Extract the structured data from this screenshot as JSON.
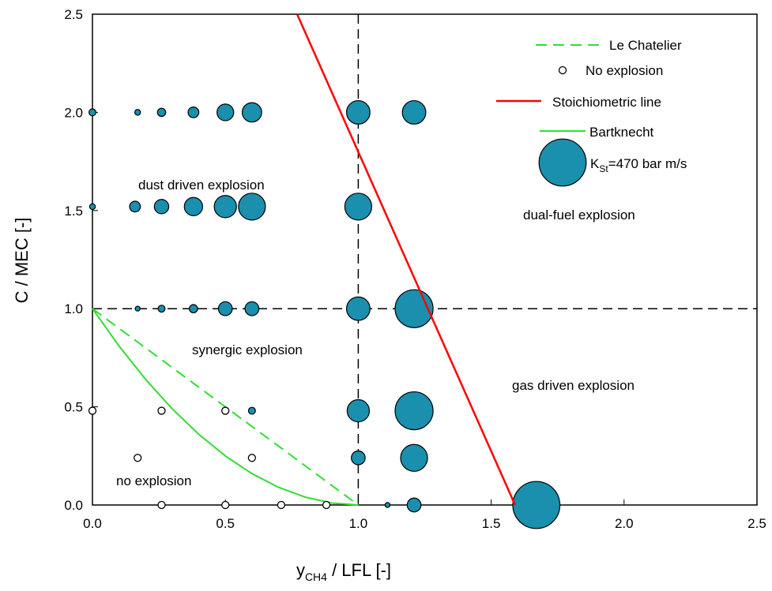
{
  "chart_data": {
    "type": "scatter",
    "xlabel": "y",
    "xlabel_sub": "CH4",
    "xlabel_rest": " / LFL  [-]",
    "ylabel": "C / MEC  [-]",
    "xlim": [
      0,
      2.5
    ],
    "ylim": [
      0,
      2.5
    ],
    "x_ticks": [
      "0.0",
      "0.5",
      "1.0",
      "1.5",
      "2.0",
      "2.5"
    ],
    "y_ticks": [
      "0.0",
      "0.5",
      "1.0",
      "1.5",
      "2.0",
      "2.5"
    ],
    "x_tick_values": [
      0,
      0.5,
      1.0,
      1.5,
      2.0,
      2.5
    ],
    "y_tick_values": [
      0,
      0.5,
      1.0,
      1.5,
      2.0,
      2.5
    ],
    "grid": false,
    "legend_position": "top-right",
    "legend": {
      "le_chatelier": "Le Chatelier",
      "no_explosion": "No explosion",
      "stoichiometric": "Stoichiometric line",
      "bartknecht": "Bartknecht",
      "kst_prefix": "K",
      "kst_sub": "St",
      "kst_suffix": "=470 bar m/s",
      "kst_reference_value": 470
    },
    "region_labels": {
      "dust": "dust driven explosion",
      "dual": "dual-fuel explosion",
      "synergic": "synergic explosion",
      "gas": "gas driven explosion",
      "none": "no explosion"
    },
    "colors": {
      "explosion_fill": "#1a8fae",
      "stoichiometric": "#ff0000",
      "le_chatelier": "#33dd33",
      "bartknecht": "#33dd33",
      "reference_lines": "#000000"
    },
    "reference_lines": {
      "vertical_x": 1.0,
      "horizontal_y": 1.0
    },
    "le_chatelier_line": {
      "x": [
        0,
        1.0
      ],
      "y": [
        1.0,
        0
      ]
    },
    "bartknecht_curve": {
      "x": [
        0,
        0.1,
        0.2,
        0.3,
        0.4,
        0.5,
        0.6,
        0.7,
        0.8,
        0.9,
        1.0
      ],
      "y": [
        1.0,
        0.81,
        0.64,
        0.49,
        0.36,
        0.25,
        0.16,
        0.09,
        0.04,
        0.01,
        0
      ]
    },
    "stoichiometric_line": {
      "x": [
        0.77,
        1.59
      ],
      "y": [
        2.5,
        0
      ]
    },
    "no_explosion_points": [
      {
        "x": 0.0,
        "y": 0.48
      },
      {
        "x": 0.26,
        "y": 0.48
      },
      {
        "x": 0.5,
        "y": 0.48
      },
      {
        "x": 0.17,
        "y": 0.24
      },
      {
        "x": 0.6,
        "y": 0.24
      },
      {
        "x": 0.26,
        "y": 0.0
      },
      {
        "x": 0.5,
        "y": 0.0
      },
      {
        "x": 0.71,
        "y": 0.0
      },
      {
        "x": 0.88,
        "y": 0.0
      }
    ],
    "explosion_points": [
      {
        "x": 0.0,
        "y": 2.0,
        "kst": 4
      },
      {
        "x": 0.17,
        "y": 2.0,
        "kst": 2
      },
      {
        "x": 0.26,
        "y": 2.0,
        "kst": 7
      },
      {
        "x": 0.38,
        "y": 2.0,
        "kst": 15
      },
      {
        "x": 0.5,
        "y": 2.0,
        "kst": 46
      },
      {
        "x": 0.6,
        "y": 2.0,
        "kst": 66
      },
      {
        "x": 1.0,
        "y": 2.0,
        "kst": 102
      },
      {
        "x": 1.21,
        "y": 2.0,
        "kst": 102
      },
      {
        "x": 0.0,
        "y": 1.52,
        "kst": 2
      },
      {
        "x": 0.16,
        "y": 1.52,
        "kst": 15
      },
      {
        "x": 0.26,
        "y": 1.52,
        "kst": 32
      },
      {
        "x": 0.38,
        "y": 1.52,
        "kst": 57
      },
      {
        "x": 0.5,
        "y": 1.52,
        "kst": 90
      },
      {
        "x": 0.6,
        "y": 1.52,
        "kst": 139
      },
      {
        "x": 1.0,
        "y": 1.52,
        "kst": 139
      },
      {
        "x": 0.17,
        "y": 1.0,
        "kst": 1
      },
      {
        "x": 0.26,
        "y": 1.0,
        "kst": 4
      },
      {
        "x": 0.38,
        "y": 1.0,
        "kst": 7
      },
      {
        "x": 0.5,
        "y": 1.0,
        "kst": 29
      },
      {
        "x": 0.6,
        "y": 1.0,
        "kst": 29
      },
      {
        "x": 1.0,
        "y": 1.0,
        "kst": 102
      },
      {
        "x": 1.21,
        "y": 1.0,
        "kst": 296
      },
      {
        "x": 0.6,
        "y": 0.48,
        "kst": 4
      },
      {
        "x": 1.0,
        "y": 0.48,
        "kst": 90
      },
      {
        "x": 1.21,
        "y": 0.48,
        "kst": 296
      },
      {
        "x": 1.0,
        "y": 0.24,
        "kst": 29
      },
      {
        "x": 1.21,
        "y": 0.24,
        "kst": 139
      },
      {
        "x": 1.11,
        "y": 0.0,
        "kst": 1
      },
      {
        "x": 1.21,
        "y": 0.0,
        "kst": 29
      },
      {
        "x": 1.67,
        "y": 0.0,
        "kst": 470
      }
    ]
  }
}
